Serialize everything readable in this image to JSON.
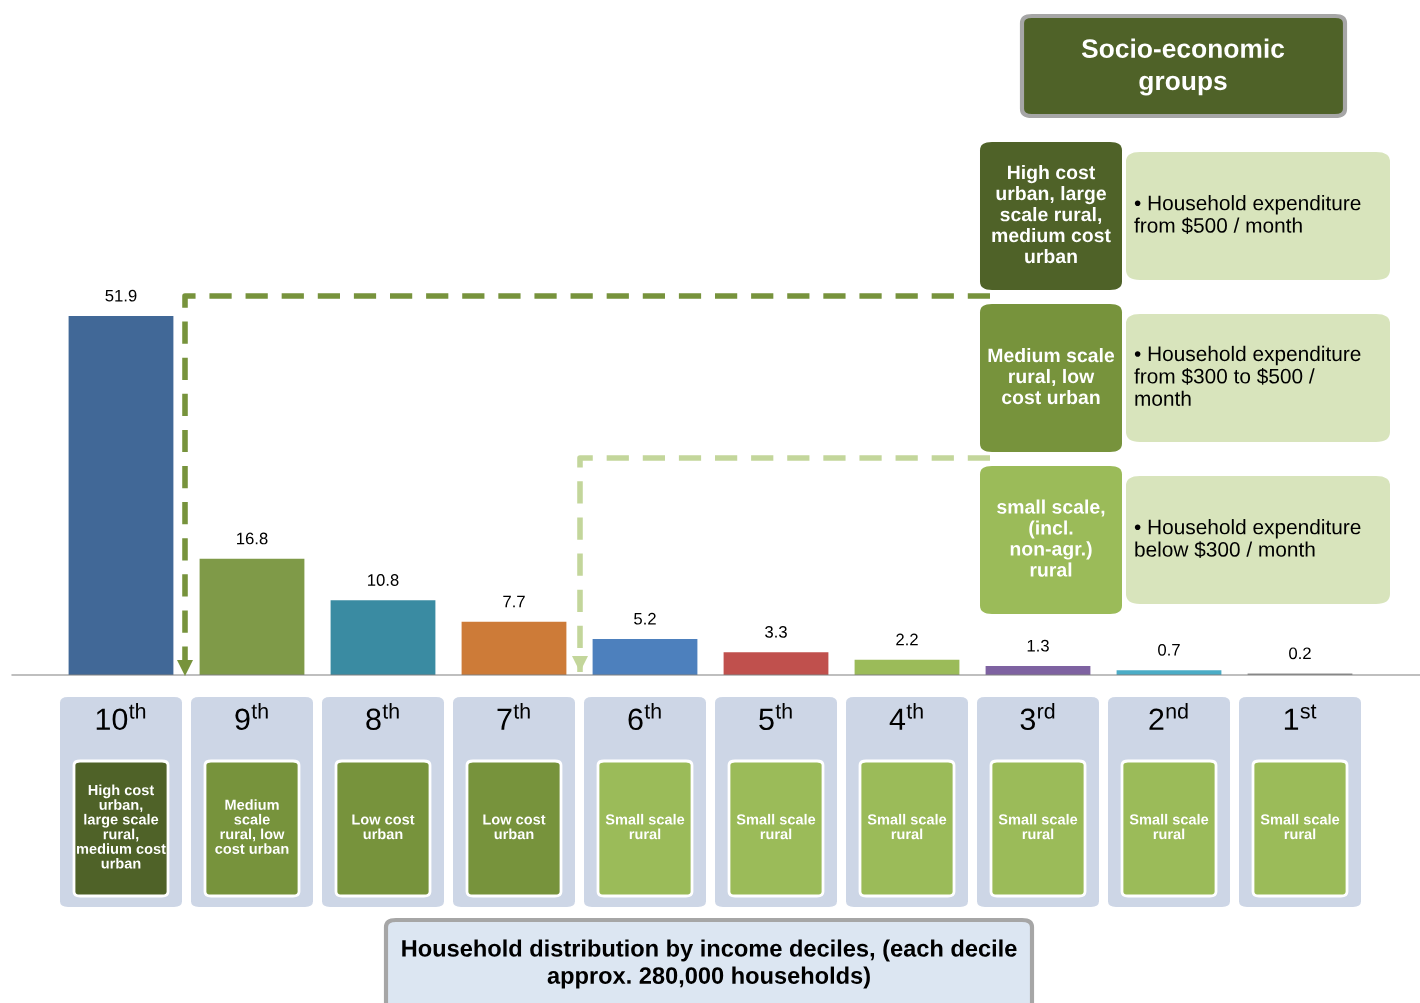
{
  "chart_data": {
    "type": "bar",
    "categories": [
      "10$^{th}$",
      "9$^{th}$",
      "8$^{th}$",
      "7$^{th}$",
      "6$^{th}$",
      "5$^{th}$",
      "4$^{th}$",
      "3$^{rd}$",
      "2$^{nd}$",
      "1$^{st}$"
    ],
    "values": [
      51.9,
      16.8,
      10.8,
      7.7,
      5.2,
      3.3,
      2.2,
      1.3,
      0.7,
      0.2
    ],
    "colors": [
      "#416897",
      "#7f9a48",
      "#3a8ba2",
      "#cd7b38",
      "#4d80bd",
      "#c0504d",
      "#9bbb59",
      "#7e62a1",
      "#4bacc6",
      "#8f8f8f"
    ],
    "data_labels": true,
    "legend_title": "Socio-economic groups",
    "annotations": [
      "High cost urban, large scale rural, medium cost urban",
      "Medium scale rural, low cost urban",
      "Low cost urban",
      "Low cost urban",
      "Small scale rural",
      "Small scale rural",
      "Small scale rural",
      "Small scale rural",
      "Small scale rural",
      "Small scale rural",
      "High cost urban, large scale rural, medium cost urban",
      "• Household expenditure from $500 / month",
      "Medium scale rural, low cost urban",
      "• Household expenditure from $300 to $500 / month",
      "small scale, (incl. non-agr.) rural",
      "• Household expenditure below $300 / month",
      "Household distribution by income deciles, (each decile approx. 280,000 households)"
    ]
  }
}
